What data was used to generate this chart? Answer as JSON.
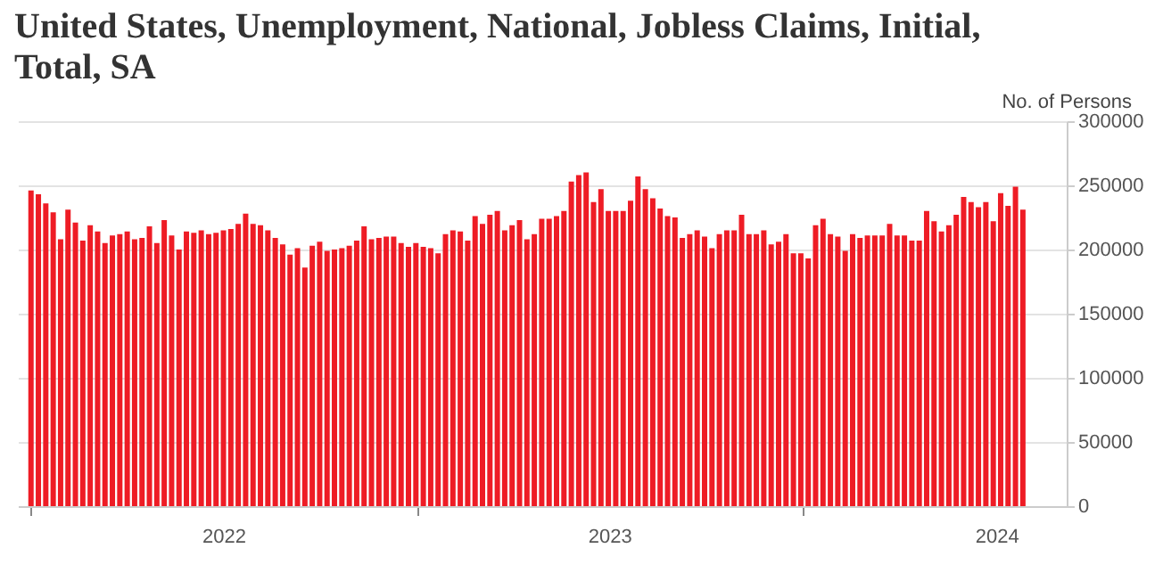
{
  "chart_data": {
    "type": "bar",
    "title": "United States, Unemployment, National, Jobless Claims, Initial, Total, SA",
    "ylabel": "No. of Persons",
    "color": "#ee1c25",
    "grid": "y",
    "x": [
      "2022-01-01",
      "2022-01-08",
      "2022-01-15",
      "2022-01-22",
      "2022-01-29",
      "2022-02-05",
      "2022-02-12",
      "2022-02-19",
      "2022-02-26",
      "2022-03-05",
      "2022-03-12",
      "2022-03-19",
      "2022-03-26",
      "2022-04-02",
      "2022-04-09",
      "2022-04-16",
      "2022-04-23",
      "2022-04-30",
      "2022-05-07",
      "2022-05-14",
      "2022-05-21",
      "2022-05-28",
      "2022-06-04",
      "2022-06-11",
      "2022-06-18",
      "2022-06-25",
      "2022-07-02",
      "2022-07-09",
      "2022-07-16",
      "2022-07-23",
      "2022-07-30",
      "2022-08-06",
      "2022-08-13",
      "2022-08-20",
      "2022-08-27",
      "2022-09-03",
      "2022-09-10",
      "2022-09-17",
      "2022-09-24",
      "2022-10-01",
      "2022-10-08",
      "2022-10-15",
      "2022-10-22",
      "2022-10-29",
      "2022-11-05",
      "2022-11-12",
      "2022-11-19",
      "2022-11-26",
      "2022-12-03",
      "2022-12-10",
      "2022-12-17",
      "2022-12-24",
      "2022-12-31",
      "2023-01-07",
      "2023-01-14",
      "2023-01-21",
      "2023-01-28",
      "2023-02-04",
      "2023-02-11",
      "2023-02-18",
      "2023-02-25",
      "2023-03-04",
      "2023-03-11",
      "2023-03-18",
      "2023-03-25",
      "2023-04-01",
      "2023-04-08",
      "2023-04-15",
      "2023-04-22",
      "2023-04-29",
      "2023-05-06",
      "2023-05-13",
      "2023-05-20",
      "2023-05-27",
      "2023-06-03",
      "2023-06-10",
      "2023-06-17",
      "2023-06-24",
      "2023-07-01",
      "2023-07-08",
      "2023-07-15",
      "2023-07-22",
      "2023-07-29",
      "2023-08-05",
      "2023-08-12",
      "2023-08-19",
      "2023-08-26",
      "2023-09-02",
      "2023-09-09",
      "2023-09-16",
      "2023-09-23",
      "2023-09-30",
      "2023-10-07",
      "2023-10-14",
      "2023-10-21",
      "2023-10-28",
      "2023-11-04",
      "2023-11-11",
      "2023-11-18",
      "2023-11-25",
      "2023-12-02",
      "2023-12-09",
      "2023-12-16",
      "2023-12-23",
      "2023-12-30",
      "2024-01-06",
      "2024-01-13",
      "2024-01-20",
      "2024-01-27",
      "2024-02-03",
      "2024-02-10",
      "2024-02-17",
      "2024-02-24",
      "2024-03-02",
      "2024-03-09",
      "2024-03-16",
      "2024-03-23",
      "2024-03-30",
      "2024-04-06",
      "2024-04-13",
      "2024-04-20",
      "2024-04-27",
      "2024-05-04",
      "2024-05-11",
      "2024-05-18",
      "2024-05-25",
      "2024-06-01",
      "2024-06-08",
      "2024-06-15",
      "2024-06-22",
      "2024-06-29",
      "2024-07-06",
      "2024-07-13",
      "2024-07-20",
      "2024-07-27"
    ],
    "values": [
      246000,
      243000,
      236000,
      229000,
      208000,
      231000,
      221000,
      207000,
      219000,
      214000,
      205000,
      211000,
      212000,
      214000,
      208000,
      209000,
      218000,
      205000,
      223000,
      211000,
      200000,
      214000,
      213000,
      215000,
      212000,
      213000,
      215000,
      216000,
      220000,
      228000,
      220000,
      219000,
      215000,
      209000,
      204000,
      196000,
      201000,
      186000,
      203000,
      206000,
      199000,
      200000,
      201000,
      203000,
      207000,
      218000,
      208000,
      209000,
      210000,
      210000,
      205000,
      202000,
      205000,
      202000,
      201000,
      197000,
      212000,
      215000,
      214000,
      207000,
      226000,
      220000,
      227000,
      230000,
      215000,
      219000,
      223000,
      208000,
      212000,
      224000,
      224000,
      226000,
      230000,
      253000,
      258000,
      260000,
      237000,
      247000,
      230000,
      230000,
      230000,
      238000,
      257000,
      247000,
      240000,
      232000,
      226000,
      225000,
      209000,
      212000,
      215000,
      210000,
      201000,
      212000,
      215000,
      215000,
      227000,
      212000,
      212000,
      215000,
      204000,
      206000,
      212000,
      197000,
      197000,
      193000,
      219000,
      224000,
      212000,
      210000,
      199000,
      212000,
      209000,
      211000,
      211000,
      211000,
      220000,
      211000,
      211000,
      207000,
      207000,
      230000,
      222000,
      214000,
      219000,
      227000,
      241000,
      237000,
      233000,
      237000,
      222000,
      244000,
      234000,
      249000,
      231000
    ],
    "xlim": [
      "2021-12-28",
      "2024-08-29"
    ],
    "xticks": [
      {
        "value": "2022-01-01",
        "label": null
      },
      {
        "value": "2022-07-02",
        "label": "2022"
      },
      {
        "value": "2023-01-01",
        "label": null
      },
      {
        "value": "2023-07-02",
        "label": "2023"
      },
      {
        "value": "2024-01-01",
        "label": null
      },
      {
        "value": "2024-07-02",
        "label": "2024"
      }
    ],
    "ylim": [
      0,
      300000
    ],
    "yticks": [
      0,
      50000,
      100000,
      150000,
      200000,
      250000,
      300000
    ]
  }
}
